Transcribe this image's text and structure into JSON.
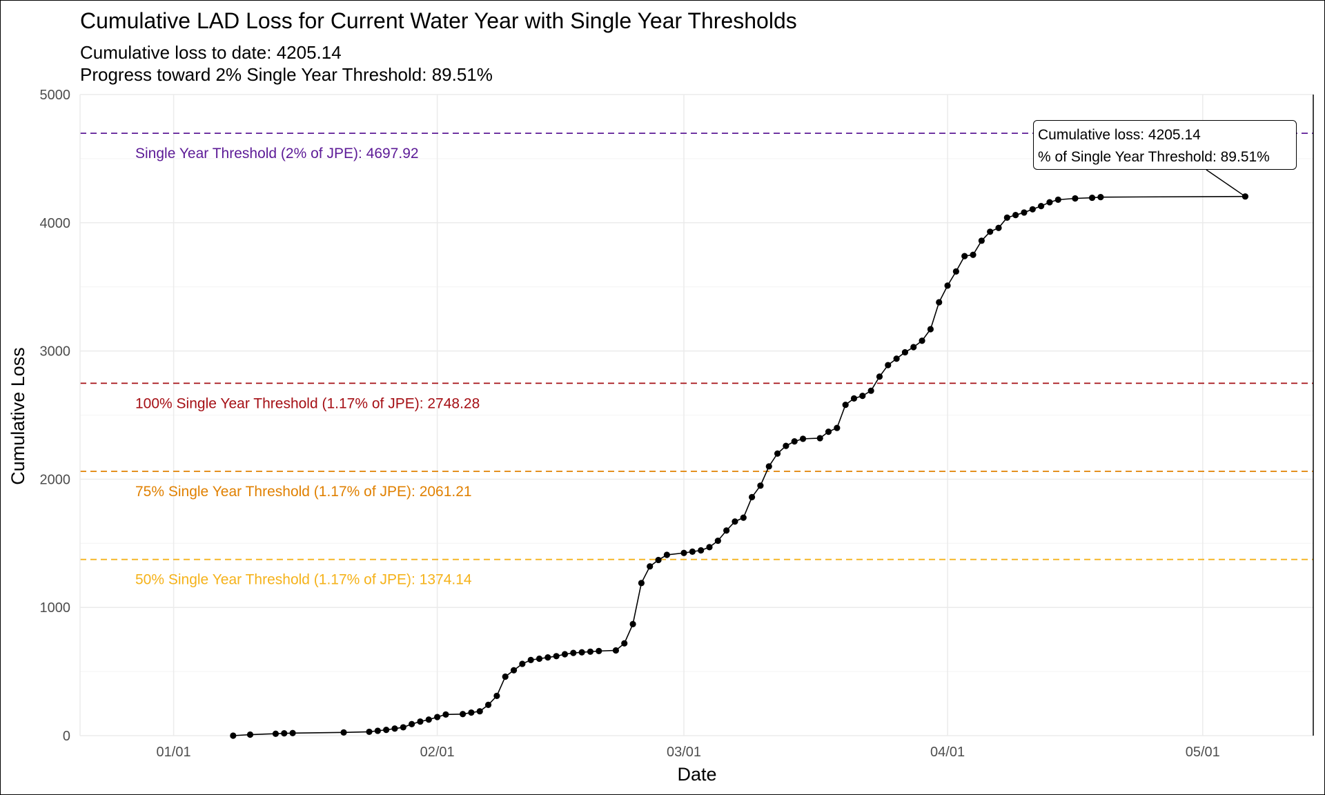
{
  "title": "Cumulative LAD Loss for Current Water Year with Single Year Thresholds",
  "subtitle_lines": [
    "Cumulative loss to date: 4205.14",
    "Progress toward 2% Single Year Threshold: 89.51%"
  ],
  "annotation": {
    "line1": "Cumulative loss: 4205.14",
    "line2": "% of Single Year Threshold: 89.51%"
  },
  "chart_data": {
    "type": "line",
    "title": "Cumulative LAD Loss for Current Water Year with Single Year Thresholds",
    "xlabel": "Date",
    "ylabel": "Cumulative Loss",
    "x_ticks": [
      {
        "date": "01/01",
        "label": "01/01"
      },
      {
        "date": "02/01",
        "label": "02/01"
      },
      {
        "date": "03/01",
        "label": "03/01"
      },
      {
        "date": "04/01",
        "label": "04/01"
      },
      {
        "date": "05/01",
        "label": "05/01"
      }
    ],
    "xlim": [
      "12/21",
      "05/14"
    ],
    "y_ticks": [
      0,
      1000,
      2000,
      3000,
      4000,
      5000
    ],
    "ylim": [
      0,
      5000
    ],
    "grid": true,
    "series": [
      {
        "color": "#000000",
        "points": [
          [
            "01/08",
            0
          ],
          [
            "01/10",
            8
          ],
          [
            "01/13",
            15
          ],
          [
            "01/14",
            18
          ],
          [
            "01/15",
            20
          ],
          [
            "01/21",
            25
          ],
          [
            "01/24",
            30
          ],
          [
            "01/25",
            38
          ],
          [
            "01/26",
            45
          ],
          [
            "01/27",
            55
          ],
          [
            "01/28",
            65
          ],
          [
            "01/29",
            90
          ],
          [
            "01/30",
            110
          ],
          [
            "01/31",
            125
          ],
          [
            "02/01",
            145
          ],
          [
            "02/02",
            165
          ],
          [
            "02/04",
            168
          ],
          [
            "02/05",
            180
          ],
          [
            "02/06",
            190
          ],
          [
            "02/07",
            240
          ],
          [
            "02/08",
            310
          ],
          [
            "02/09",
            460
          ],
          [
            "02/10",
            510
          ],
          [
            "02/11",
            560
          ],
          [
            "02/12",
            590
          ],
          [
            "02/13",
            600
          ],
          [
            "02/14",
            610
          ],
          [
            "02/15",
            620
          ],
          [
            "02/16",
            635
          ],
          [
            "02/17",
            645
          ],
          [
            "02/18",
            650
          ],
          [
            "02/19",
            655
          ],
          [
            "02/20",
            660
          ],
          [
            "02/22",
            665
          ],
          [
            "02/23",
            720
          ],
          [
            "02/24",
            870
          ],
          [
            "02/25",
            1190
          ],
          [
            "02/26",
            1320
          ],
          [
            "02/27",
            1370
          ],
          [
            "02/28",
            1410
          ],
          [
            "03/01",
            1425
          ],
          [
            "03/02",
            1435
          ],
          [
            "03/03",
            1445
          ],
          [
            "03/04",
            1470
          ],
          [
            "03/05",
            1520
          ],
          [
            "03/06",
            1600
          ],
          [
            "03/07",
            1670
          ],
          [
            "03/08",
            1700
          ],
          [
            "03/09",
            1860
          ],
          [
            "03/10",
            1950
          ],
          [
            "03/11",
            2100
          ],
          [
            "03/12",
            2200
          ],
          [
            "03/13",
            2260
          ],
          [
            "03/14",
            2295
          ],
          [
            "03/15",
            2315
          ],
          [
            "03/17",
            2320
          ],
          [
            "03/18",
            2370
          ],
          [
            "03/19",
            2400
          ],
          [
            "03/20",
            2580
          ],
          [
            "03/21",
            2630
          ],
          [
            "03/22",
            2650
          ],
          [
            "03/23",
            2690
          ],
          [
            "03/24",
            2800
          ],
          [
            "03/25",
            2890
          ],
          [
            "03/26",
            2940
          ],
          [
            "03/27",
            2990
          ],
          [
            "03/28",
            3030
          ],
          [
            "03/29",
            3080
          ],
          [
            "03/30",
            3170
          ],
          [
            "03/31",
            3380
          ],
          [
            "04/01",
            3510
          ],
          [
            "04/02",
            3620
          ],
          [
            "04/03",
            3740
          ],
          [
            "04/04",
            3750
          ],
          [
            "04/05",
            3860
          ],
          [
            "04/06",
            3930
          ],
          [
            "04/07",
            3960
          ],
          [
            "04/08",
            4040
          ],
          [
            "04/09",
            4060
          ],
          [
            "04/10",
            4080
          ],
          [
            "04/11",
            4105
          ],
          [
            "04/12",
            4130
          ],
          [
            "04/13",
            4160
          ],
          [
            "04/14",
            4180
          ],
          [
            "04/16",
            4190
          ],
          [
            "04/18",
            4195
          ],
          [
            "04/19",
            4200
          ],
          [
            "05/06",
            4205.14
          ]
        ]
      }
    ],
    "thresholds": [
      {
        "label": "Single Year Threshold (2% of JPE): 4697.92",
        "value": 4697.92,
        "color": "#5c1a96"
      },
      {
        "label": "100% Single Year Threshold (1.17% of JPE): 2748.28",
        "value": 2748.28,
        "color": "#a50f15"
      },
      {
        "label": "75% Single Year Threshold (1.17% of JPE): 2061.21",
        "value": 2061.21,
        "color": "#e08000"
      },
      {
        "label": "50% Single Year Threshold (1.17% of JPE): 1374.14",
        "value": 1374.14,
        "color": "#f5b21a"
      }
    ]
  }
}
